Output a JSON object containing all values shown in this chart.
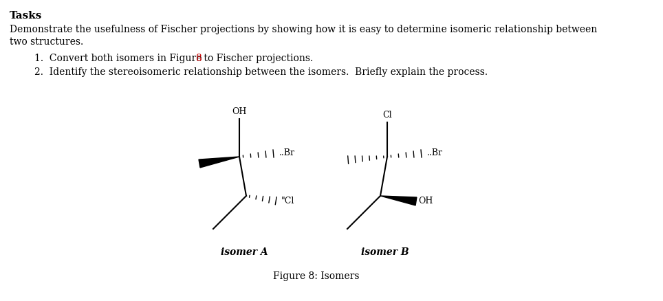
{
  "title": "Tasks",
  "intro_line1": "Demonstrate the usefulness of Fischer projections by showing how it is easy to determine isomeric relationship between",
  "intro_line2": "two structures.",
  "item1_pre": "1.  Convert both isomers in Figure ",
  "item1_num": "8",
  "item1_post": " to Fischer projections.",
  "item2": "2.  Identify the stereoisomeric relationship between the isomers.  Briefly explain the process.",
  "figure_label": "Figure 8: Isomers",
  "isomer_a_label": "isomer A",
  "isomer_b_label": "isomer B",
  "figure_ref_color": "#cc0000",
  "bg_color": "#ffffff",
  "text_color": "#000000",
  "fontsize_title": 11,
  "fontsize_body": 10,
  "fontsize_chem": 9
}
